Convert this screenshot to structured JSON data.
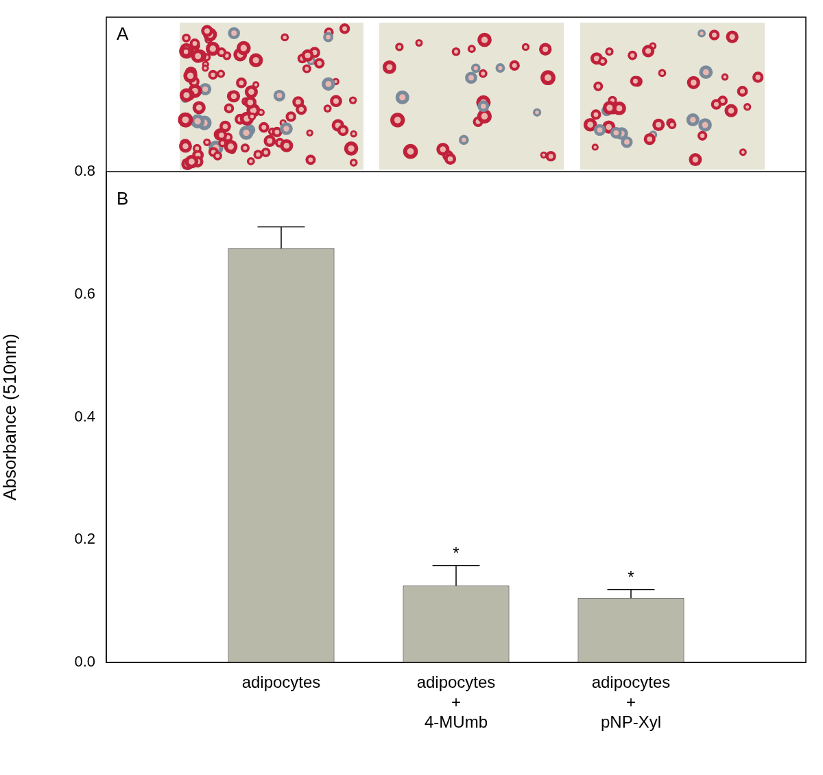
{
  "chart_data": {
    "type": "bar",
    "panel_labels": [
      "A",
      "B"
    ],
    "categories": [
      [
        "adipocytes"
      ],
      [
        "adipocytes",
        "+",
        "4-MUmb"
      ],
      [
        "adipocytes",
        "+",
        "pNP-Xyl"
      ]
    ],
    "values": [
      0.675,
      0.125,
      0.105
    ],
    "errors": [
      0.035,
      0.033,
      0.014
    ],
    "annotations": [
      null,
      "*",
      "*"
    ],
    "color": "#b9b9a9",
    "y_label": "Absorbance (510nm)",
    "ylim": [
      0,
      0.8
    ],
    "yticks": [
      {
        "value": 0,
        "label": "0.0"
      },
      0.2,
      0.4,
      0.6,
      0.8
    ],
    "grid": false
  }
}
